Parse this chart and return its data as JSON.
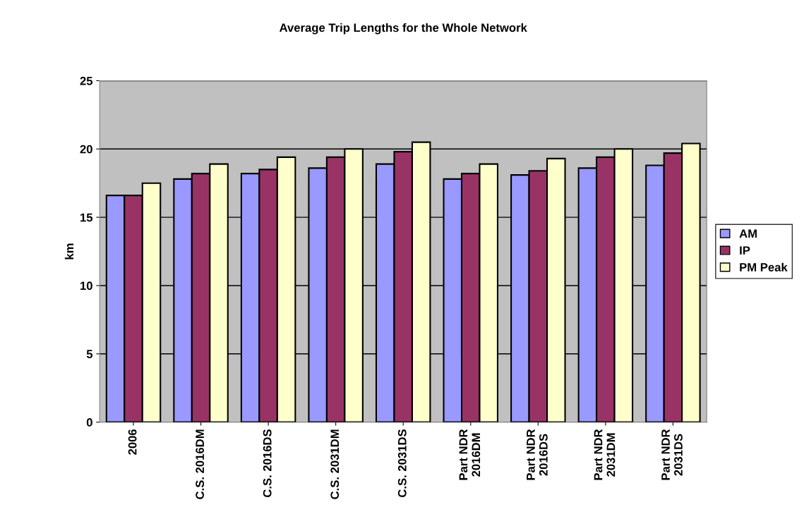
{
  "chart_data": {
    "type": "bar",
    "title": "Average Trip Lengths for the Whole Network",
    "ylabel": "km",
    "categories": [
      "2006",
      "C.S. 2016DM",
      "C.S. 2016DS",
      "C.S. 2031DM",
      "C.S. 2031DS",
      "Part NDR\n2016DM",
      "Part NDR\n2016DS",
      "Part NDR\n2031DM",
      "Part NDR\n2031DS"
    ],
    "series": [
      {
        "name": "AM",
        "color": "#9999ff",
        "values": [
          16.6,
          17.8,
          18.2,
          18.6,
          18.9,
          17.8,
          18.1,
          18.6,
          18.8
        ]
      },
      {
        "name": "IP",
        "color": "#993366",
        "values": [
          16.6,
          18.2,
          18.5,
          19.4,
          19.8,
          18.2,
          18.4,
          19.4,
          19.7
        ]
      },
      {
        "name": "PM Peak",
        "color": "#ffffcc",
        "values": [
          17.5,
          18.9,
          19.4,
          20.0,
          20.5,
          18.9,
          19.3,
          20.0,
          20.4
        ]
      }
    ],
    "ylim": [
      0,
      25
    ],
    "yticks": [
      0,
      5,
      10,
      15,
      20,
      25
    ],
    "grid": "y",
    "legend": "right"
  }
}
